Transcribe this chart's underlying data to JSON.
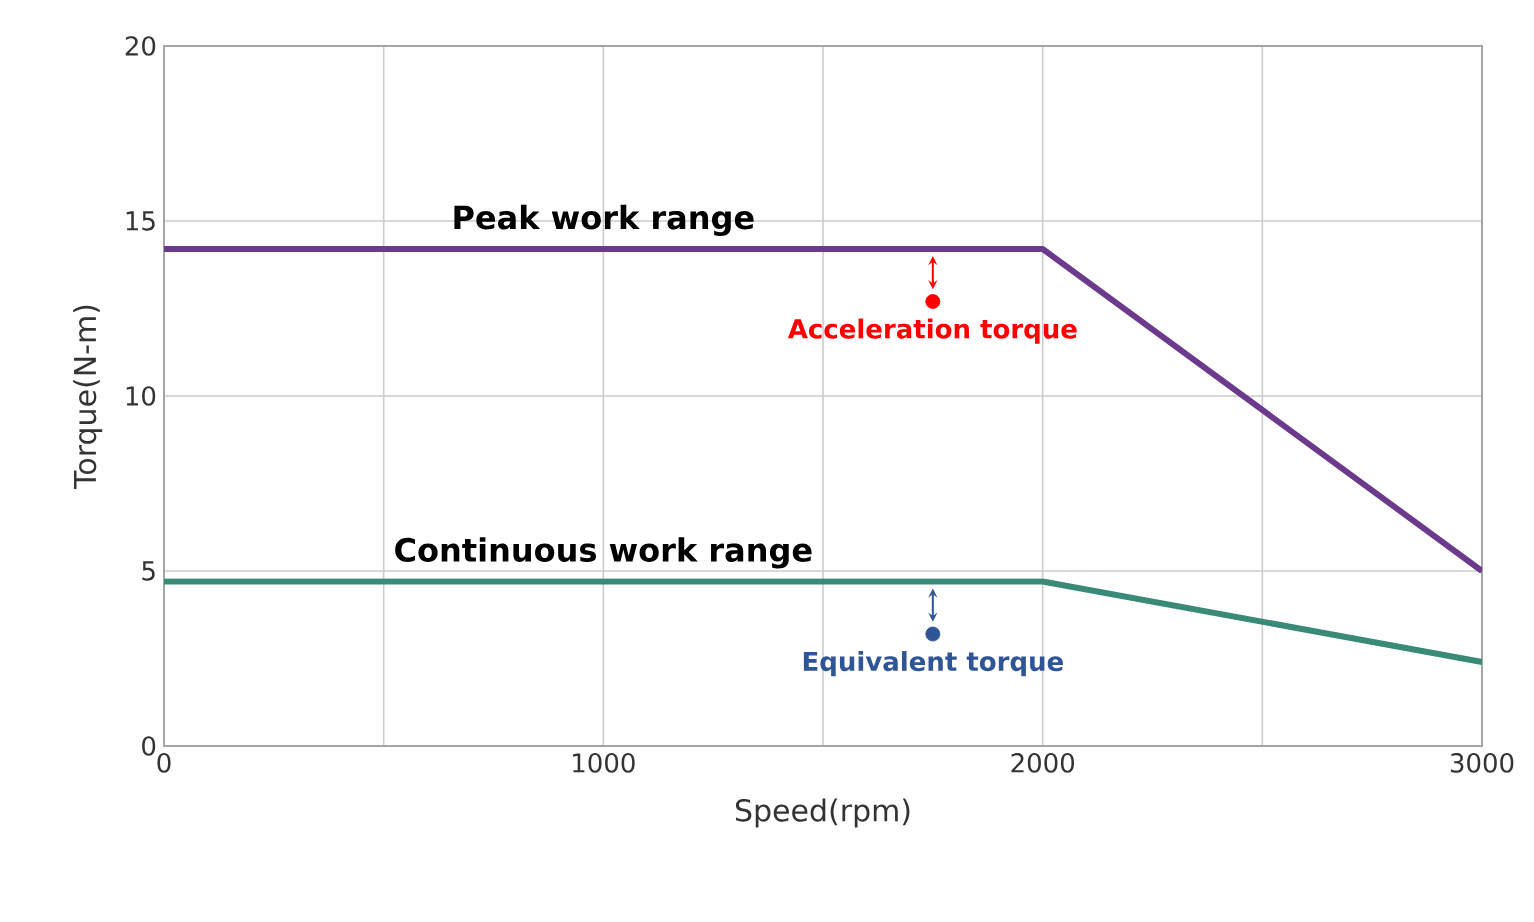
{
  "chart_data": {
    "type": "line",
    "xlabel": "Speed(rpm)",
    "ylabel": "Torque(N-m)",
    "xlim": [
      0,
      3000
    ],
    "ylim": [
      0,
      20
    ],
    "xticks": [
      0,
      {
        "value": 500,
        "label": null
      },
      1000,
      {
        "value": 1500,
        "label": null
      },
      2000,
      {
        "value": 2500,
        "label": null
      },
      3000
    ],
    "yticks": [
      0,
      5,
      10,
      15,
      20
    ],
    "grid": true,
    "series": [
      {
        "name": "Peak work range",
        "color": "#6b3a8c",
        "x": [
          0,
          2000,
          3000
        ],
        "values": [
          14.2,
          14.2,
          5.0
        ]
      },
      {
        "name": "Continuous work range",
        "color": "#3a8a78",
        "x": [
          0,
          2000,
          3000
        ],
        "values": [
          4.7,
          4.7,
          2.4
        ]
      },
      {
        "type": "scatter",
        "color": "#ff0000",
        "x": [
          1750
        ],
        "values": [
          12.7
        ]
      },
      {
        "type": "scatter",
        "color": "#2f5597",
        "x": [
          1750
        ],
        "values": [
          3.2
        ]
      }
    ],
    "annotations": [
      {
        "text": "Acceleration torque",
        "x": 1750,
        "y": 12.7
      },
      {
        "text": "Equivalent torque",
        "x": 1750,
        "y": 3.2
      }
    ]
  }
}
